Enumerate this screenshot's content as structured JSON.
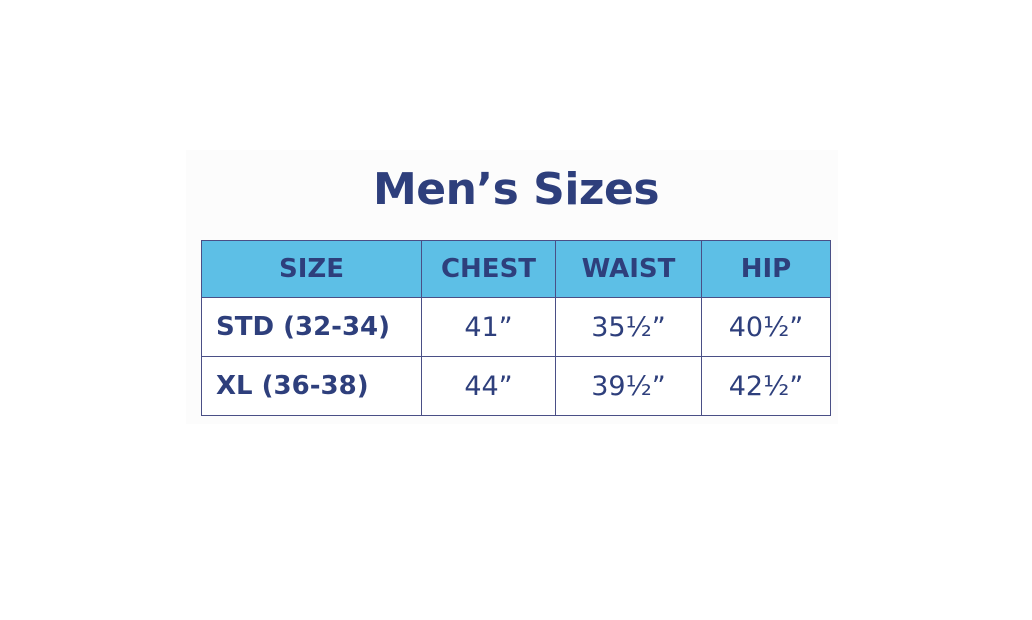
{
  "title": "Men’s Sizes",
  "table": {
    "headers": [
      "SIZE",
      "CHEST",
      "WAIST",
      "HIP"
    ],
    "rows": [
      {
        "size": "STD (32-34)",
        "chest": "41”",
        "waist": "35½”",
        "hip": "40½”"
      },
      {
        "size": "XL (36-38)",
        "chest": "44”",
        "waist": "39½”",
        "hip": "42½”"
      }
    ]
  },
  "colors": {
    "title_text": "#2e3f7c",
    "header_background": "#5dbfe6",
    "border": "#4a4f86"
  }
}
